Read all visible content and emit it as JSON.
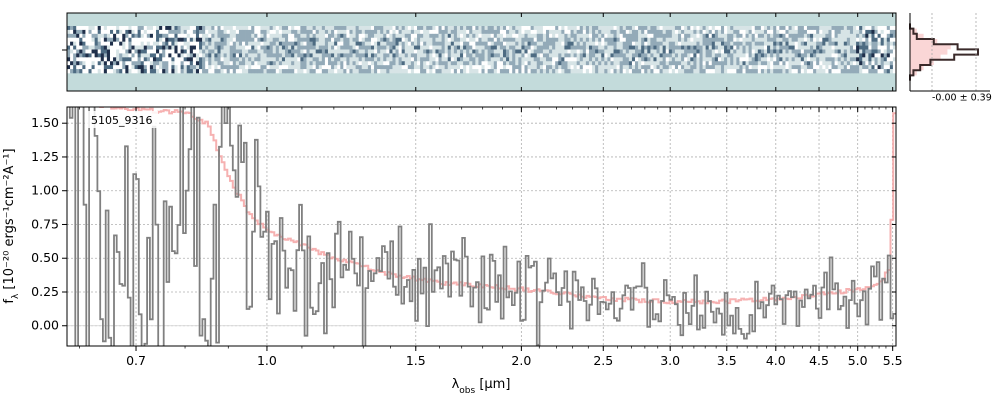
{
  "chart_data": [
    {
      "type": "heatmap",
      "panel": "2d-spectrum",
      "background_color": "#c3dbdb",
      "colormap": [
        "#0b0b0b",
        "#1f2f4a",
        "#4d6b82",
        "#93aab8",
        "#d7e4e6",
        "#ffffff"
      ]
    },
    {
      "type": "line",
      "panel": "spatial-profile",
      "annotation": "-0.00 ± 0.39",
      "series": [
        {
          "color": "#3a2a2a",
          "y": [
            -1.0,
            -0.8,
            -0.6,
            -0.4,
            -0.2,
            0.0,
            0.2,
            0.4,
            0.6,
            0.8,
            1.0
          ],
          "values": [
            0.0,
            0.05,
            0.1,
            0.35,
            0.7,
            1.0,
            0.65,
            0.3,
            0.15,
            0.05,
            0.0
          ]
        },
        {
          "color": "#f4a3a3",
          "y": [
            -1.0,
            -0.8,
            -0.6,
            -0.4,
            -0.2,
            0.0,
            0.2,
            0.4,
            0.6,
            0.8,
            1.0
          ],
          "values": [
            0.0,
            0.1,
            0.2,
            0.4,
            0.6,
            0.55,
            0.45,
            0.35,
            0.2,
            0.1,
            0.0
          ]
        }
      ]
    },
    {
      "type": "line",
      "panel": "1d-spectrum",
      "xlabel_main": "λ",
      "xlabel_sub": "obs",
      "xlabel_unit": " [μm]",
      "ylabel_main": "f",
      "ylabel_sub": "λ",
      "ylabel_unit": " [10⁻²⁰ ergs⁻¹cm⁻²A⁻¹]",
      "xscale": "log",
      "xlim": [
        0.58,
        5.55
      ],
      "ylim": [
        -0.15,
        1.62
      ],
      "x_ticks": [
        0.7,
        1.0,
        1.5,
        2.0,
        2.5,
        3.0,
        3.5,
        4.0,
        4.5,
        5.0,
        5.5
      ],
      "x_tick_labels": [
        "0.7",
        "1.0",
        "1.5",
        "2.0",
        "2.5",
        "3.0",
        "3.5",
        "4.0",
        "4.5",
        "5.0",
        "5.5"
      ],
      "y_ticks": [
        0.0,
        0.25,
        0.5,
        0.75,
        1.0,
        1.25,
        1.5
      ],
      "y_tick_labels": [
        "0.00",
        "0.25",
        "0.50",
        "0.75",
        "1.00",
        "1.25",
        "1.50"
      ],
      "grid": true,
      "object_label": "5105_9316",
      "series": [
        {
          "role": "data",
          "color": "#808080",
          "style": "steps",
          "x": [
            0.6,
            0.65,
            0.7,
            0.75,
            0.8,
            0.85,
            0.9,
            0.95,
            1.0,
            1.1,
            1.2,
            1.3,
            1.4,
            1.5,
            1.6,
            1.8,
            2.0,
            2.2,
            2.5,
            2.8,
            3.0,
            3.5,
            4.0,
            4.5,
            5.0,
            5.3,
            5.45
          ],
          "y": [
            1.8,
            0.2,
            0.9,
            -0.1,
            1.3,
            0.1,
            1.4,
            0.6,
            0.9,
            0.5,
            0.4,
            0.35,
            0.45,
            0.3,
            0.35,
            0.3,
            0.2,
            0.35,
            0.15,
            0.2,
            0.15,
            0.12,
            0.2,
            0.18,
            0.22,
            0.3,
            0.3
          ],
          "noise": [
            1.2,
            1.2,
            1.0,
            0.9,
            0.8,
            0.7,
            0.6,
            0.5,
            0.45,
            0.35,
            0.3,
            0.28,
            0.25,
            0.22,
            0.2,
            0.18,
            0.18,
            0.17,
            0.15,
            0.15,
            0.15,
            0.15,
            0.15,
            0.15,
            0.17,
            0.2,
            0.2
          ]
        },
        {
          "role": "model",
          "color": "#f4a3a3",
          "style": "steps",
          "x": [
            0.58,
            0.7,
            0.8,
            0.85,
            0.9,
            0.95,
            1.0,
            1.1,
            1.2,
            1.4,
            1.6,
            2.0,
            2.5,
            3.0,
            3.5,
            4.0,
            4.5,
            5.0,
            5.3,
            5.45,
            5.5,
            5.53
          ],
          "y": [
            1.65,
            1.6,
            1.58,
            1.5,
            1.1,
            0.85,
            0.7,
            0.6,
            0.5,
            0.38,
            0.32,
            0.27,
            0.2,
            0.18,
            0.18,
            0.2,
            0.23,
            0.27,
            0.3,
            0.42,
            0.9,
            1.6
          ]
        }
      ]
    }
  ]
}
